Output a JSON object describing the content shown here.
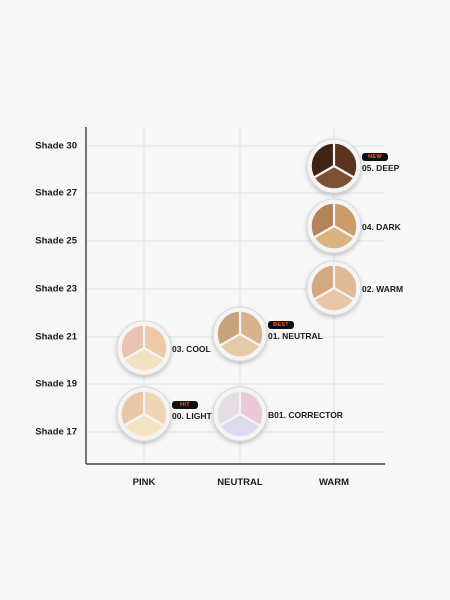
{
  "chart_data": {
    "type": "scatter",
    "title": "",
    "xlabel": "",
    "ylabel": "",
    "x_categories": [
      "PINK",
      "NEUTRAL",
      "WARM"
    ],
    "y_ticks": [
      "Shade 17",
      "Shade 19",
      "Shade 21",
      "Shade 23",
      "Shade 25",
      "Shade 27",
      "Shade 30"
    ],
    "grid": true,
    "points": [
      {
        "x": "WARM",
        "y": "Shade 30 / Shade 27",
        "label": "05. DEEP",
        "badge": "NEW",
        "colors": [
          "#3f2416",
          "#5a341f",
          "#7e5032"
        ],
        "position": "between"
      },
      {
        "x": "WARM",
        "y": "Shade 25",
        "label": "04. DARK",
        "badge": "",
        "colors": [
          "#b48459",
          "#c99c6a",
          "#dab381"
        ],
        "position": "between"
      },
      {
        "x": "WARM",
        "y": "Shade 23",
        "label": "02. WARM",
        "badge": "",
        "colors": [
          "#d6a882",
          "#e1b896",
          "#e9c6a7"
        ],
        "position": "between"
      },
      {
        "x": "NEUTRAL",
        "y": "Shade 21",
        "label": "01. NEUTRAL",
        "badge": "BEST",
        "colors": [
          "#c8a27b",
          "#d7b38d",
          "#e6caa6"
        ],
        "position": "between"
      },
      {
        "x": "PINK",
        "y": "Shade 21",
        "label": "03. COOL",
        "badge": "",
        "colors": [
          "#e8c4b0",
          "#eec9a8",
          "#f2e2c2"
        ],
        "position": "between"
      },
      {
        "x": "PINK",
        "y": "Shade 17",
        "label": "00. LIGHT",
        "badge": "HIT",
        "colors": [
          "#e8c6a6",
          "#efd5b5",
          "#f4e3c4"
        ],
        "position": "between"
      },
      {
        "x": "NEUTRAL",
        "y": "Shade 17",
        "label": "B01. CORRECTOR",
        "badge": "",
        "colors": [
          "#e6dde4",
          "#ebc9d9",
          "#ddd9f0"
        ],
        "position": "between"
      }
    ]
  }
}
